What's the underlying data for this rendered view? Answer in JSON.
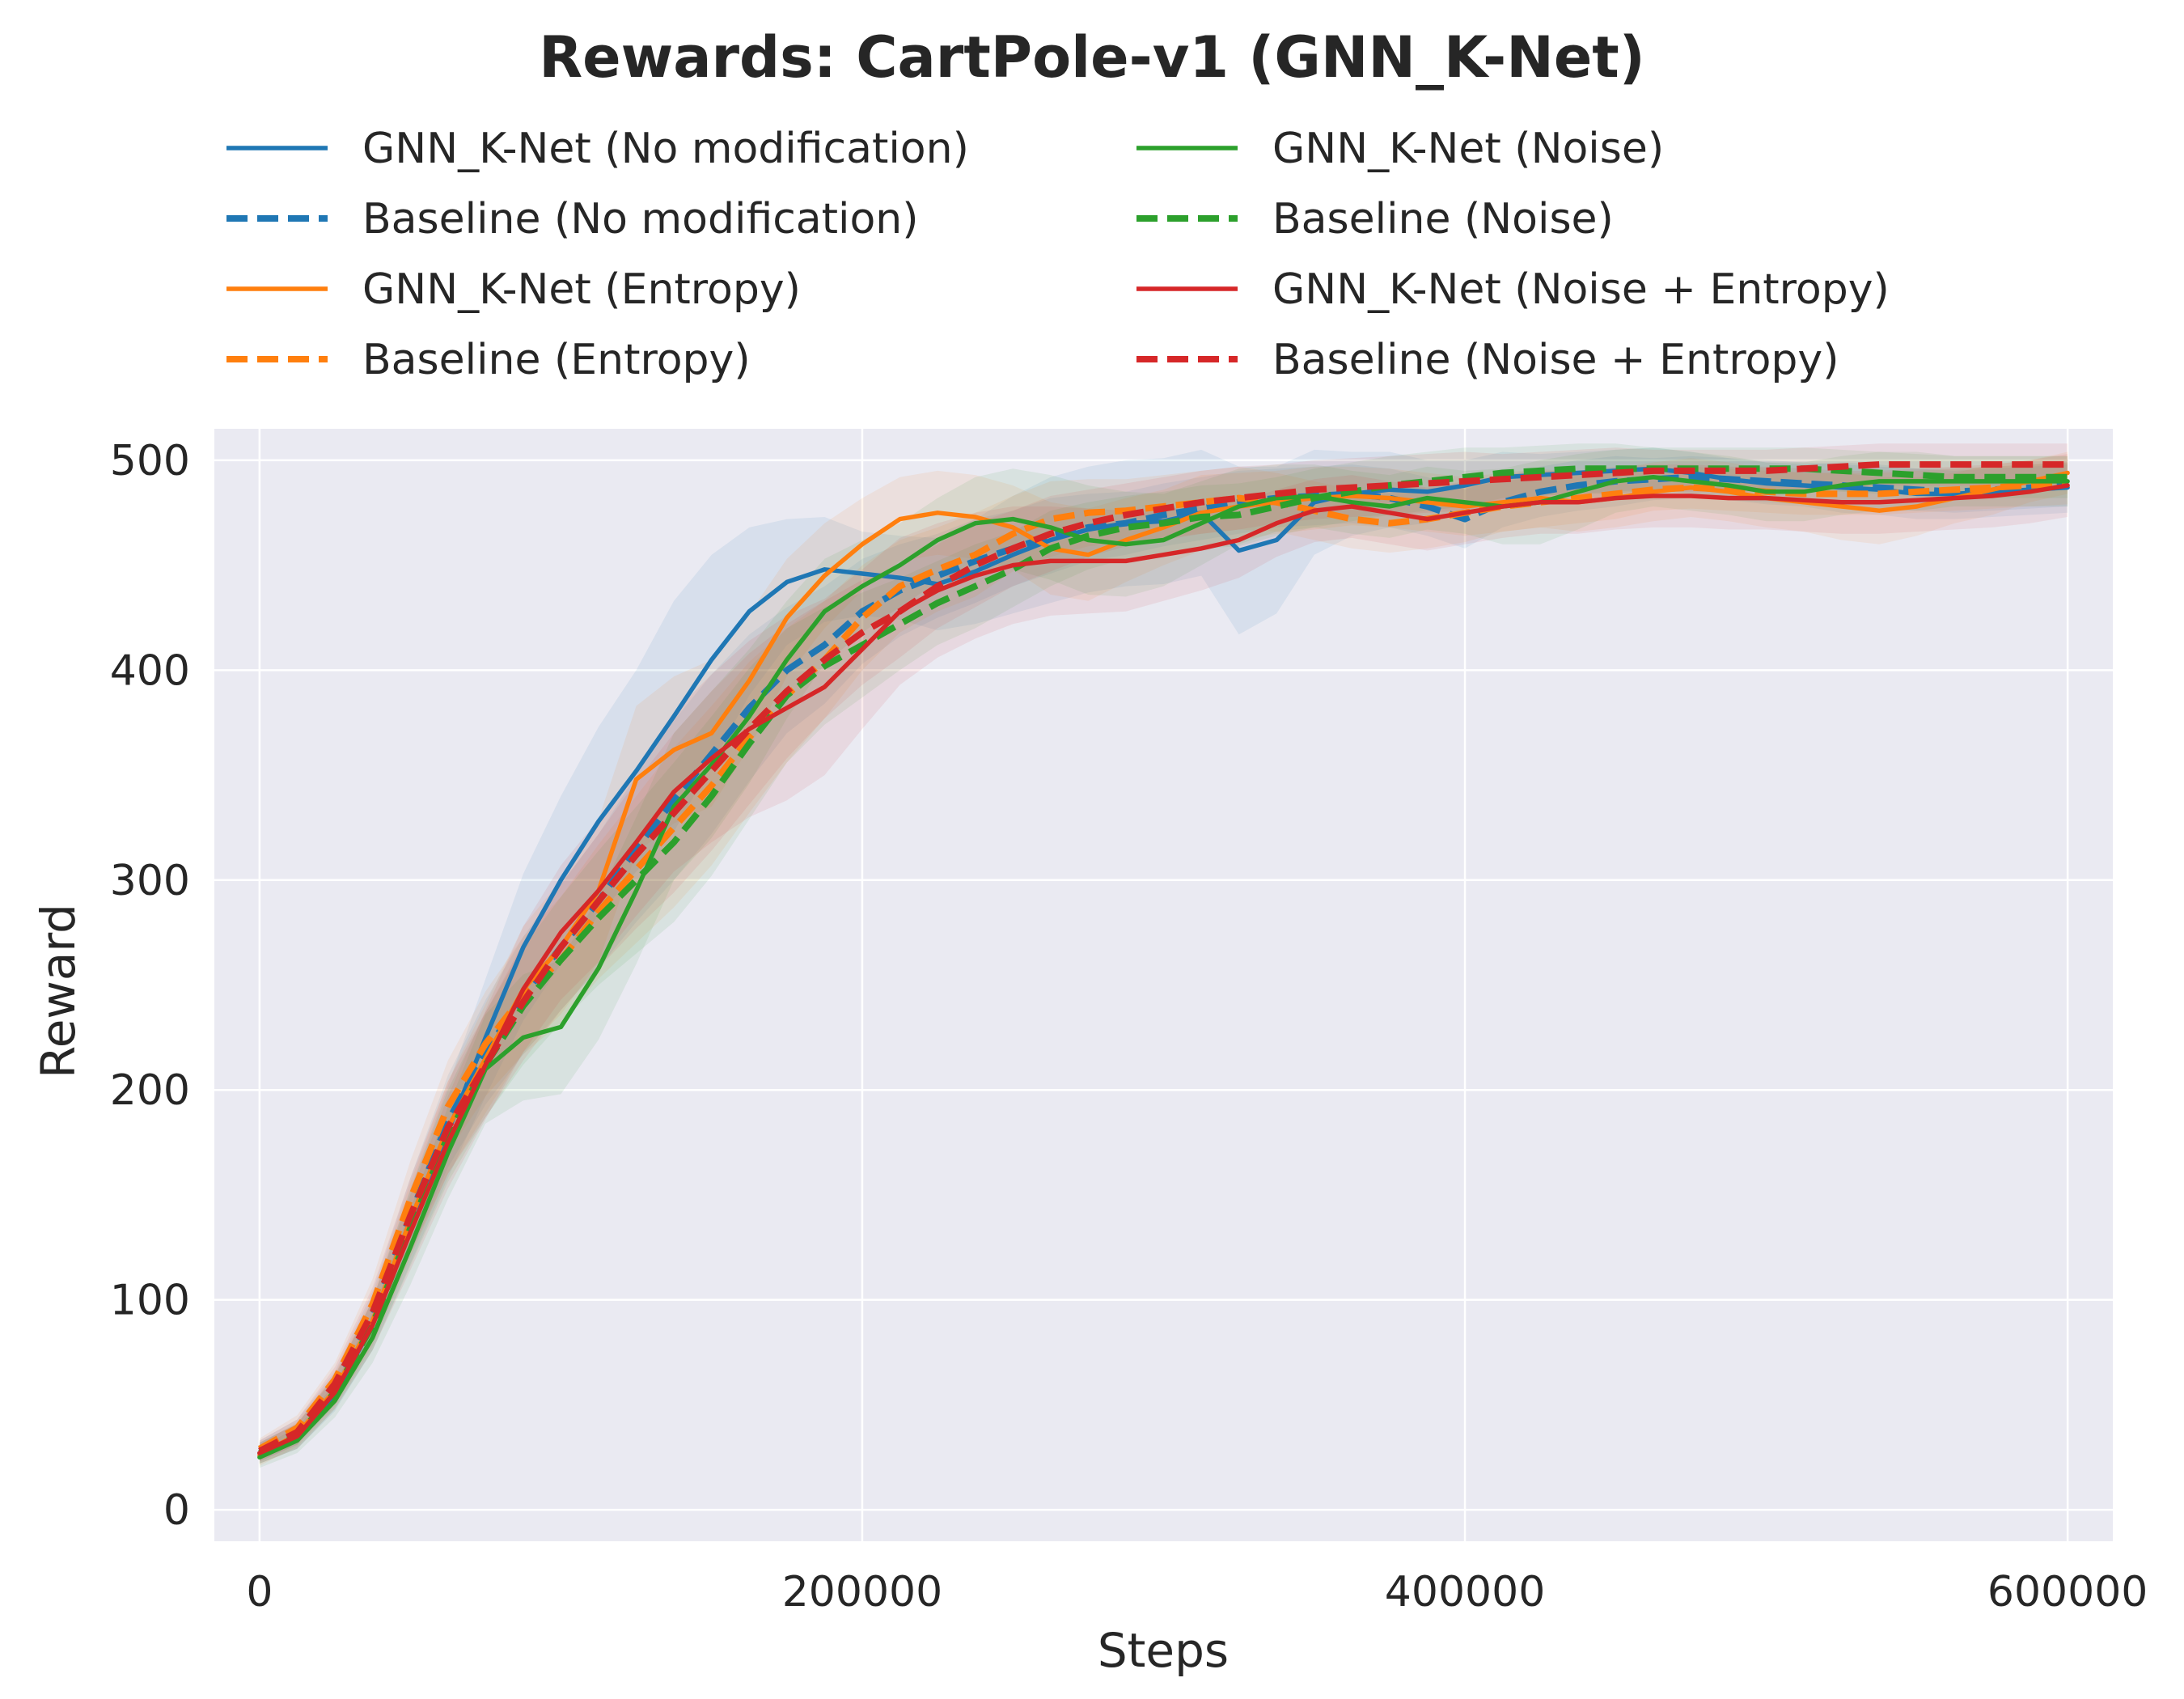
{
  "chart_data": {
    "type": "line",
    "title": "Rewards: CartPole-v1 (GNN_K-Net)",
    "xlabel": "Steps",
    "ylabel": "Reward",
    "xlim": [
      -15000,
      615000
    ],
    "ylim": [
      -15,
      515
    ],
    "xticks": [
      0,
      200000,
      400000,
      600000
    ],
    "yticks": [
      0,
      100,
      200,
      300,
      400,
      500
    ],
    "grid": true,
    "legend": {
      "placement": "top",
      "columns": 2
    },
    "background_color": "#eaeaf2",
    "x": [
      0,
      12500,
      25000,
      37500,
      50000,
      62500,
      75000,
      87500,
      100000,
      112500,
      125000,
      137500,
      150000,
      162500,
      175000,
      187500,
      200000,
      212500,
      225000,
      237500,
      250000,
      262500,
      275000,
      287500,
      300000,
      312500,
      325000,
      337500,
      350000,
      362500,
      375000,
      387500,
      400000,
      412500,
      425000,
      437500,
      450000,
      462500,
      475000,
      487500,
      500000,
      512500,
      525000,
      537500,
      550000,
      562500,
      575000,
      587500,
      600000
    ],
    "series": [
      {
        "name": "GNN_K-Net (No modification)",
        "color": "#1f77b4",
        "dash": "solid",
        "values": [
          27,
          35,
          55,
          88,
          135,
          180,
          225,
          268,
          300,
          328,
          352,
          378,
          405,
          428,
          442,
          448,
          446,
          444,
          441,
          447,
          455,
          462,
          467,
          470,
          471,
          475,
          457,
          462,
          480,
          484,
          486,
          485,
          488,
          492,
          493,
          494,
          495,
          496,
          494,
          491,
          489,
          488,
          487,
          486,
          484,
          484,
          485,
          486,
          487
        ],
        "band": [
          5,
          6,
          8,
          12,
          18,
          22,
          28,
          35,
          40,
          45,
          48,
          55,
          50,
          40,
          30,
          25,
          20,
          20,
          22,
          25,
          28,
          30,
          30,
          30,
          30,
          30,
          40,
          35,
          25,
          20,
          18,
          15,
          12,
          12,
          10,
          10,
          10,
          10,
          10,
          10,
          10,
          10,
          12,
          12,
          12,
          12,
          12,
          12,
          12
        ]
      },
      {
        "name": "Baseline (No modification)",
        "color": "#1f77b4",
        "dash": "dashed",
        "values": [
          28,
          37,
          58,
          92,
          140,
          185,
          218,
          245,
          268,
          290,
          315,
          338,
          360,
          382,
          400,
          412,
          428,
          438,
          445,
          452,
          458,
          464,
          468,
          470,
          474,
          477,
          480,
          482,
          483,
          484,
          482,
          478,
          472,
          480,
          485,
          488,
          490,
          491,
          492,
          491,
          490,
          489,
          488,
          487,
          486,
          485,
          486,
          487,
          488
        ],
        "band": [
          5,
          6,
          8,
          12,
          18,
          22,
          25,
          28,
          30,
          32,
          35,
          38,
          38,
          35,
          30,
          28,
          25,
          22,
          20,
          20,
          18,
          18,
          16,
          15,
          15,
          15,
          15,
          14,
          14,
          14,
          14,
          14,
          14,
          12,
          12,
          12,
          12,
          10,
          10,
          10,
          10,
          10,
          10,
          10,
          10,
          10,
          10,
          10,
          10
        ]
      },
      {
        "name": "GNN_K-Net (Entropy)",
        "color": "#ff7f0e",
        "dash": "solid",
        "values": [
          26,
          36,
          57,
          90,
          138,
          182,
          215,
          248,
          268,
          295,
          348,
          362,
          370,
          395,
          425,
          445,
          460,
          472,
          475,
          473,
          468,
          458,
          455,
          462,
          468,
          475,
          478,
          480,
          482,
          483,
          482,
          480,
          478,
          480,
          482,
          480,
          482,
          485,
          487,
          485,
          482,
          480,
          478,
          476,
          478,
          482,
          486,
          490,
          494
        ],
        "band": [
          5,
          6,
          8,
          12,
          18,
          22,
          26,
          30,
          32,
          34,
          35,
          35,
          35,
          32,
          28,
          25,
          22,
          20,
          20,
          20,
          20,
          22,
          22,
          20,
          18,
          18,
          16,
          15,
          15,
          14,
          14,
          14,
          14,
          14,
          14,
          14,
          14,
          14,
          14,
          14,
          14,
          14,
          16,
          16,
          14,
          12,
          12,
          10,
          10
        ]
      },
      {
        "name": "Baseline (Entropy)",
        "color": "#ff7f0e",
        "dash": "dashed",
        "values": [
          29,
          39,
          62,
          98,
          148,
          192,
          222,
          245,
          262,
          285,
          305,
          325,
          345,
          368,
          388,
          405,
          425,
          440,
          448,
          455,
          465,
          472,
          475,
          476,
          478,
          480,
          482,
          480,
          476,
          472,
          470,
          472,
          475,
          478,
          480,
          482,
          484,
          486,
          487,
          486,
          485,
          484,
          484,
          484,
          485,
          486,
          487,
          488,
          489
        ],
        "band": [
          5,
          6,
          8,
          12,
          18,
          22,
          25,
          28,
          30,
          32,
          35,
          38,
          38,
          36,
          32,
          28,
          25,
          22,
          20,
          20,
          18,
          18,
          16,
          15,
          15,
          15,
          15,
          14,
          14,
          14,
          14,
          14,
          14,
          12,
          12,
          12,
          12,
          10,
          10,
          10,
          10,
          10,
          10,
          10,
          10,
          10,
          10,
          10,
          10
        ]
      },
      {
        "name": "GNN_K-Net (Noise)",
        "color": "#2ca02c",
        "dash": "solid",
        "values": [
          25,
          33,
          52,
          82,
          125,
          170,
          210,
          225,
          230,
          258,
          295,
          335,
          355,
          378,
          405,
          428,
          440,
          450,
          462,
          470,
          472,
          468,
          462,
          460,
          462,
          470,
          478,
          482,
          483,
          480,
          478,
          482,
          480,
          478,
          480,
          485,
          490,
          492,
          490,
          488,
          485,
          485,
          488,
          490,
          490,
          490,
          490,
          490,
          490
        ],
        "band": [
          5,
          6,
          8,
          12,
          18,
          22,
          26,
          30,
          32,
          34,
          35,
          35,
          35,
          32,
          28,
          25,
          22,
          20,
          20,
          22,
          24,
          25,
          26,
          25,
          22,
          20,
          18,
          16,
          15,
          15,
          15,
          15,
          15,
          18,
          20,
          18,
          15,
          14,
          14,
          14,
          14,
          14,
          14,
          14,
          14,
          12,
          12,
          12,
          12
        ]
      },
      {
        "name": "Baseline (Noise)",
        "color": "#2ca02c",
        "dash": "dashed",
        "values": [
          27,
          35,
          56,
          88,
          134,
          178,
          212,
          240,
          262,
          282,
          300,
          318,
          340,
          365,
          388,
          402,
          412,
          422,
          432,
          440,
          448,
          458,
          464,
          468,
          470,
          473,
          474,
          478,
          482,
          485,
          488,
          490,
          492,
          494,
          495,
          496,
          496,
          496,
          496,
          496,
          496,
          496,
          495,
          494,
          493,
          492,
          492,
          492,
          492
        ],
        "band": [
          5,
          6,
          8,
          12,
          18,
          22,
          25,
          28,
          30,
          32,
          35,
          38,
          38,
          36,
          32,
          28,
          25,
          22,
          20,
          20,
          18,
          18,
          16,
          15,
          15,
          15,
          15,
          14,
          14,
          14,
          14,
          14,
          14,
          12,
          12,
          12,
          12,
          10,
          10,
          10,
          10,
          10,
          10,
          10,
          10,
          10,
          10,
          10,
          10
        ]
      },
      {
        "name": "GNN_K-Net (Noise + Entropy)",
        "color": "#d62728",
        "dash": "solid",
        "values": [
          27,
          35,
          56,
          88,
          132,
          175,
          212,
          248,
          275,
          295,
          318,
          342,
          358,
          372,
          382,
          392,
          410,
          428,
          438,
          445,
          450,
          452,
          452,
          452,
          455,
          458,
          462,
          470,
          476,
          478,
          475,
          472,
          475,
          478,
          480,
          480,
          482,
          483,
          483,
          482,
          482,
          481,
          480,
          480,
          481,
          482,
          483,
          485,
          488
        ],
        "band": [
          5,
          6,
          8,
          12,
          18,
          22,
          26,
          30,
          32,
          34,
          35,
          38,
          40,
          42,
          44,
          42,
          38,
          35,
          32,
          30,
          28,
          26,
          25,
          24,
          22,
          20,
          18,
          16,
          15,
          15,
          15,
          15,
          15,
          15,
          15,
          15,
          15,
          15,
          15,
          15,
          15,
          15,
          15,
          15,
          15,
          15,
          15,
          15,
          15
        ]
      },
      {
        "name": "Baseline (Noise + Entropy)",
        "color": "#d62728",
        "dash": "dashed",
        "values": [
          28,
          37,
          60,
          94,
          140,
          182,
          212,
          242,
          268,
          290,
          312,
          332,
          352,
          372,
          390,
          405,
          418,
          428,
          440,
          450,
          458,
          465,
          470,
          474,
          477,
          480,
          482,
          484,
          486,
          487,
          488,
          489,
          490,
          491,
          492,
          493,
          494,
          495,
          495,
          495,
          495,
          496,
          497,
          498,
          498,
          498,
          498,
          498,
          498
        ],
        "band": [
          5,
          6,
          8,
          12,
          18,
          22,
          25,
          28,
          30,
          32,
          35,
          38,
          38,
          36,
          32,
          28,
          25,
          22,
          20,
          20,
          18,
          18,
          16,
          15,
          15,
          15,
          15,
          14,
          14,
          14,
          14,
          14,
          14,
          12,
          12,
          12,
          12,
          10,
          10,
          10,
          10,
          10,
          10,
          10,
          10,
          10,
          10,
          10,
          10
        ]
      }
    ]
  }
}
